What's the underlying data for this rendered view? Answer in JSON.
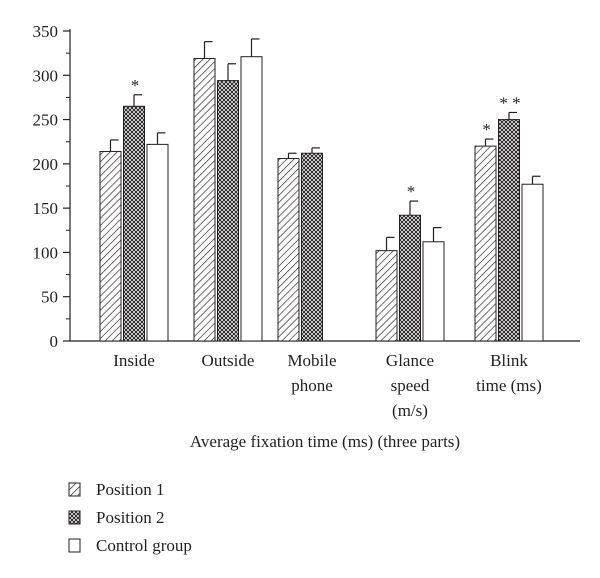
{
  "chart_data": {
    "type": "bar",
    "categories": [
      [
        "Inside"
      ],
      [
        "Outside"
      ],
      [
        "Mobile",
        "phone"
      ],
      [
        "Glance",
        "speed",
        "(m/s)"
      ],
      [
        "Blink",
        "time (ms)"
      ]
    ],
    "series": [
      {
        "name": "Position 1",
        "pattern": "hatch",
        "values": [
          214,
          319,
          206,
          102,
          220
        ],
        "errors": [
          13,
          19,
          6,
          15,
          8
        ],
        "marks": [
          "",
          "",
          "",
          "",
          "*"
        ]
      },
      {
        "name": "Position 2",
        "pattern": "crosshatch",
        "values": [
          265,
          294,
          212,
          142,
          250
        ],
        "errors": [
          13,
          19,
          6,
          16,
          8
        ],
        "marks": [
          "*",
          "",
          "",
          "*",
          "* *"
        ]
      },
      {
        "name": "Control group",
        "pattern": "white",
        "values": [
          222,
          321,
          0,
          112,
          177
        ],
        "errors": [
          13,
          20,
          0,
          16,
          9
        ],
        "marks": [
          "",
          "",
          "",
          "",
          ""
        ]
      }
    ],
    "xlabel": "Average fixation time (ms) (three parts)",
    "ylabel": "",
    "ylim": [
      0,
      350
    ],
    "yticks": [
      "0",
      "50",
      "100",
      "150",
      "200",
      "250",
      "300",
      "350"
    ],
    "grid": false,
    "legend_placement": "bottom-left"
  }
}
